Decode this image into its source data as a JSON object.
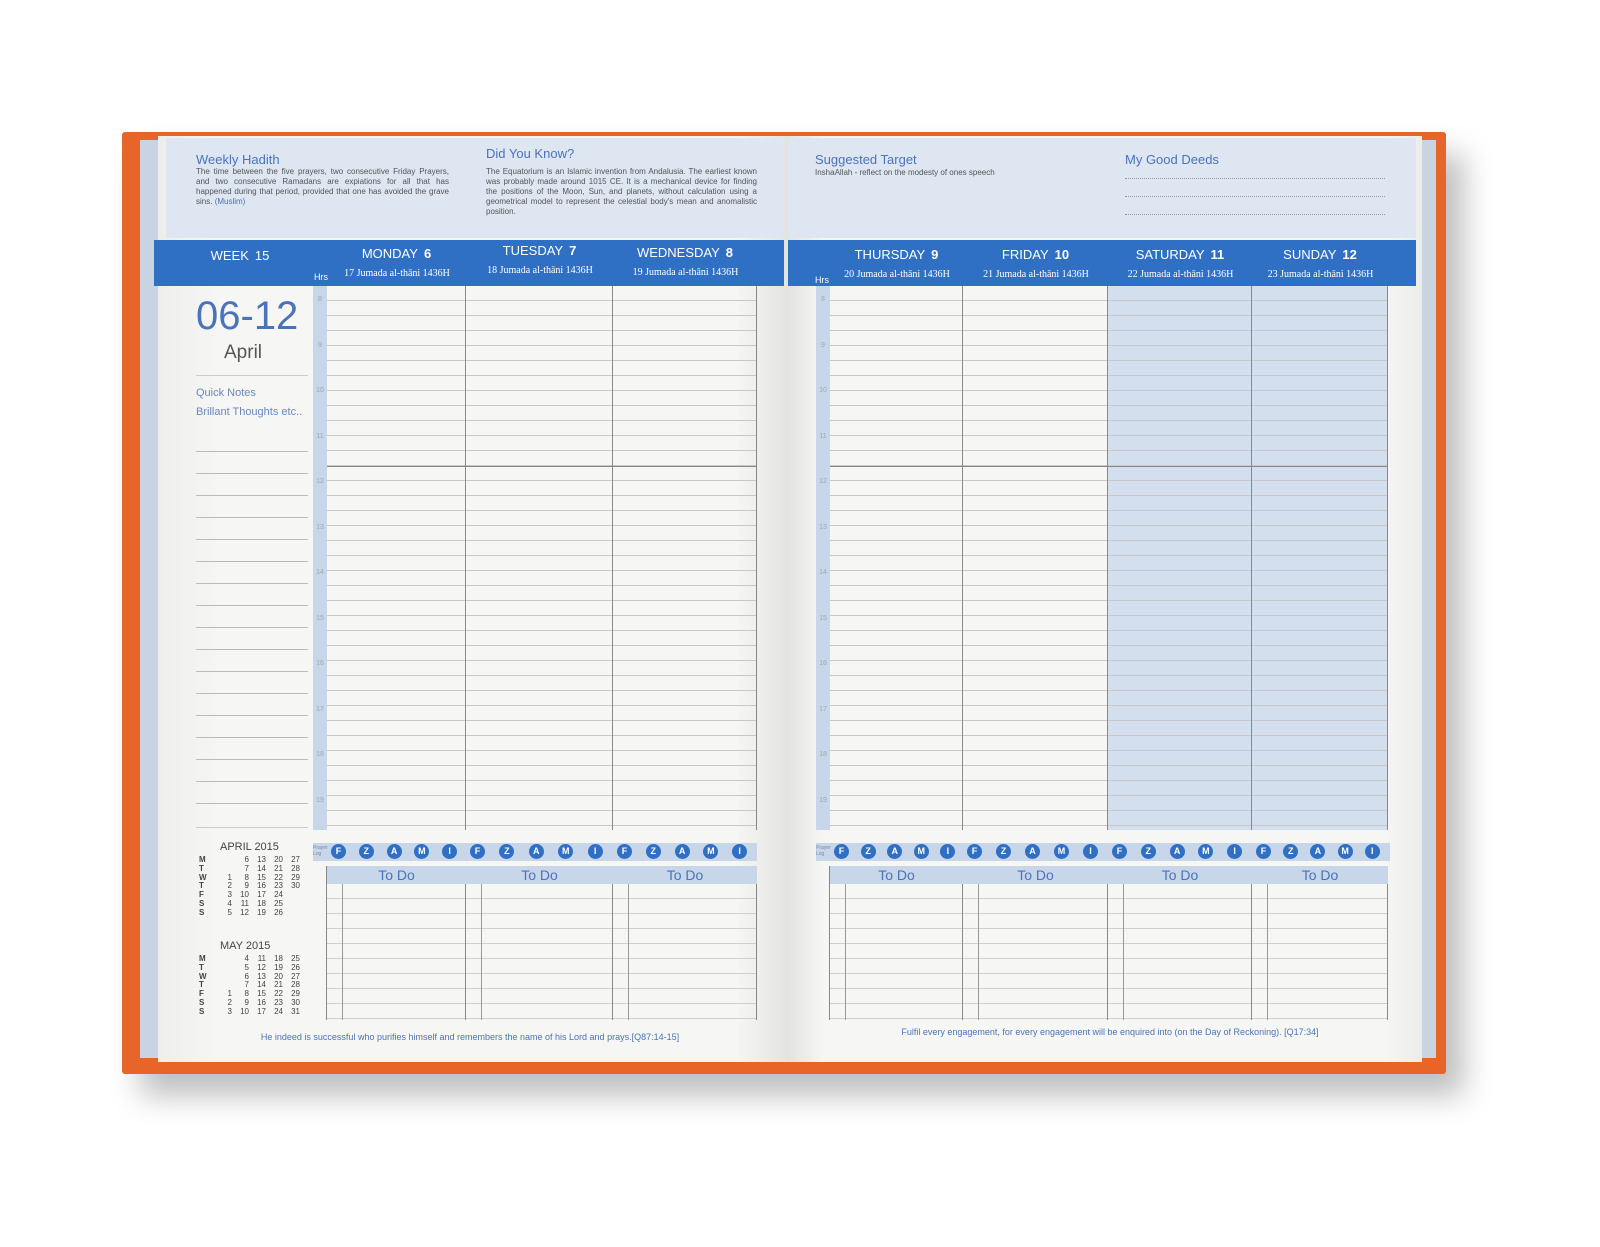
{
  "left_page": {
    "weekly_hadith": {
      "title": "Weekly Hadith",
      "text": "The time between the five prayers, two consecutive Friday Prayers, and two consecutive Ramadans are expiations for all that has happened during that period, provided that one has avoided the grave sins.",
      "source": "(Muslim)"
    },
    "did_you_know": {
      "title": "Did You Know?",
      "text": "The Equatorium is an Islamic invention from Andalusia. The earliest known was probably made around 1015 CE. It is a mechanical device for finding the positions of the Moon, Sun, and planets, without calculation using a geometrical model to represent the celestial body's mean and anomalistic position."
    },
    "week_label": "WEEK",
    "week_number": "15",
    "date_range": "06-12",
    "month": "April",
    "quick_notes": "Quick Notes",
    "brilliant_thoughts": "Brillant Thoughts etc..",
    "hrs_label": "Hrs",
    "footer": "He indeed is successful who purifies himself and remembers the name of his Lord and prays.[Q87:14-15]",
    "mini_calendars": [
      {
        "title": "APRIL 2015",
        "weekdays": [
          "M",
          "T",
          "W",
          "T",
          "F",
          "S",
          "S"
        ],
        "rows": [
          [
            "",
            "6",
            "13",
            "20",
            "27"
          ],
          [
            "",
            "7",
            "14",
            "21",
            "28"
          ],
          [
            "1",
            "8",
            "15",
            "22",
            "29"
          ],
          [
            "2",
            "9",
            "16",
            "23",
            "30"
          ],
          [
            "3",
            "10",
            "17",
            "24",
            ""
          ],
          [
            "4",
            "11",
            "18",
            "25",
            ""
          ],
          [
            "5",
            "12",
            "19",
            "26",
            ""
          ]
        ]
      },
      {
        "title": "MAY 2015",
        "weekdays": [
          "M",
          "T",
          "W",
          "T",
          "F",
          "S",
          "S"
        ],
        "rows": [
          [
            "",
            "4",
            "11",
            "18",
            "25"
          ],
          [
            "",
            "5",
            "12",
            "19",
            "26"
          ],
          [
            "",
            "6",
            "13",
            "20",
            "27"
          ],
          [
            "",
            "7",
            "14",
            "21",
            "28"
          ],
          [
            "1",
            "8",
            "15",
            "22",
            "29"
          ],
          [
            "2",
            "9",
            "16",
            "23",
            "30"
          ],
          [
            "3",
            "10",
            "17",
            "24",
            "31"
          ]
        ]
      }
    ]
  },
  "right_page": {
    "suggested_target": {
      "title": "Suggested Target",
      "text": "InshaAllah - reflect on the modesty of ones speech"
    },
    "good_deeds": {
      "title": "My Good Deeds"
    },
    "hrs_label": "Hrs",
    "footer": "Fulfil every engagement, for every engagement will be enquired into (on the Day of Reckoning). [Q17:34]"
  },
  "days": [
    {
      "name": "MONDAY",
      "num": "6",
      "hijri": "17 Jumada al-thāni 1436H",
      "weekend": false
    },
    {
      "name": "TUESDAY",
      "num": "7",
      "hijri": "18 Jumada al-thāni 1436H",
      "weekend": false
    },
    {
      "name": "WEDNESDAY",
      "num": "8",
      "hijri": "19 Jumada al-thāni 1436H",
      "weekend": false
    },
    {
      "name": "THURSDAY",
      "num": "9",
      "hijri": "20 Jumada al-thāni 1436H",
      "weekend": false
    },
    {
      "name": "FRIDAY",
      "num": "10",
      "hijri": "21 Jumada al-thāni 1436H",
      "weekend": false
    },
    {
      "name": "SATURDAY",
      "num": "11",
      "hijri": "22 Jumada al-thāni 1436H",
      "weekend": true
    },
    {
      "name": "SUNDAY",
      "num": "12",
      "hijri": "23 Jumada al-thāni 1436H",
      "weekend": true
    }
  ],
  "hours": [
    "8",
    "9",
    "10",
    "11",
    "12",
    "13",
    "14",
    "15",
    "16",
    "17",
    "18",
    "19"
  ],
  "prayer_log_label": "Prayer Log",
  "prayers": [
    "F",
    "Z",
    "A",
    "M",
    "I"
  ],
  "todo_label": "To Do",
  "colors": {
    "cover": "#e8652a",
    "accent_blue": "#2f6fc4",
    "light_blue": "#dde6f1",
    "weekend_shade": "#d3dfee"
  }
}
